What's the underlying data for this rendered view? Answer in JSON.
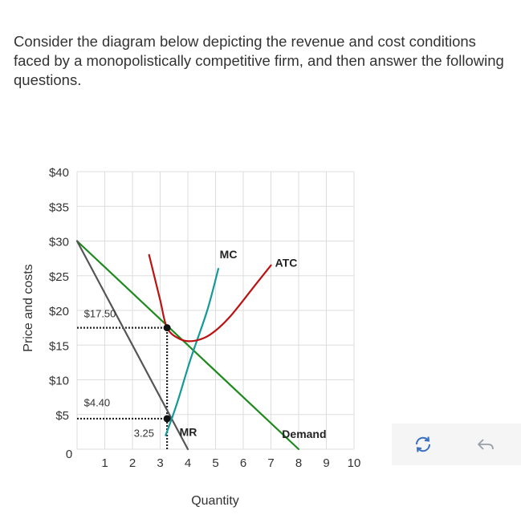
{
  "question": {
    "text": "Consider the diagram below depicting the revenue and cost conditions faced by a monopolistically competitive firm, and then answer the following questions."
  },
  "toolbar": {
    "reset_icon": "reset-icon",
    "undo_icon": "undo-icon"
  },
  "chart_data": {
    "type": "line",
    "xlabel": "Quantity",
    "ylabel": "Price and costs",
    "xlim": [
      0,
      10
    ],
    "ylim": [
      0,
      40
    ],
    "x_ticks": [
      1,
      2,
      3,
      4,
      5,
      6,
      7,
      8,
      9,
      10
    ],
    "y_ticks": [
      {
        "value": 5,
        "label": "$5"
      },
      {
        "value": 10,
        "label": "$10"
      },
      {
        "value": 15,
        "label": "$15"
      },
      {
        "value": 20,
        "label": "$20"
      },
      {
        "value": 25,
        "label": "$25"
      },
      {
        "value": 30,
        "label": "$30"
      },
      {
        "value": 35,
        "label": "$35"
      },
      {
        "value": 40,
        "label": "$40"
      }
    ],
    "origin_label": "0",
    "grid": true,
    "series": [
      {
        "name": "Demand",
        "color": "#1e8a1e",
        "points": [
          [
            0,
            30
          ],
          [
            8,
            0
          ]
        ]
      },
      {
        "name": "MR",
        "color": "#555555",
        "points": [
          [
            0,
            30
          ],
          [
            4,
            0
          ]
        ]
      },
      {
        "name": "MC",
        "color": "#14999a",
        "points": [
          [
            3.2,
            2
          ],
          [
            3.6,
            6.5
          ],
          [
            4.1,
            13
          ],
          [
            4.7,
            20
          ],
          [
            5.1,
            26
          ]
        ]
      },
      {
        "name": "ATC",
        "color": "#bb1111",
        "points": [
          [
            2.6,
            28
          ],
          [
            3.0,
            21.5
          ],
          [
            3.25,
            17.5
          ],
          [
            3.7,
            15.9
          ],
          [
            4.2,
            15.6
          ],
          [
            4.8,
            16.5
          ],
          [
            5.5,
            19.0
          ],
          [
            6.5,
            24.0
          ],
          [
            7.0,
            26.5
          ]
        ]
      }
    ],
    "series_labels": [
      {
        "text": "MC",
        "x": 5.15,
        "y": 27.5
      },
      {
        "text": "ATC",
        "x": 7.15,
        "y": 26.3
      },
      {
        "text": "MR",
        "x": 3.7,
        "y": 1.9
      },
      {
        "text": "Demand",
        "x": 7.4,
        "y": 1.6
      }
    ],
    "annotations": [
      {
        "text": "$17.50",
        "x": 0.25,
        "y": 19.0
      },
      {
        "text": "$4.40",
        "x": 0.25,
        "y": 6.2
      },
      {
        "text": "3.25",
        "x": 2.05,
        "y": 1.8
      }
    ],
    "points": [
      {
        "x": 3.25,
        "y": 17.5
      },
      {
        "x": 3.25,
        "y": 4.4
      }
    ],
    "guides": [
      {
        "from": [
          0,
          17.5
        ],
        "to": [
          3.25,
          17.5
        ]
      },
      {
        "from": [
          0,
          4.4
        ],
        "to": [
          3.25,
          4.4
        ]
      },
      {
        "from": [
          3.25,
          0
        ],
        "to": [
          3.25,
          17.5
        ]
      }
    ]
  }
}
